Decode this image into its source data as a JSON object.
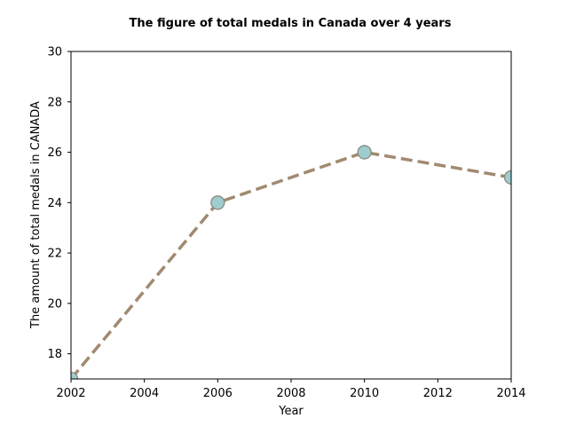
{
  "chart_data": {
    "type": "line",
    "title": "The figure of total medals in Canada over 4 years",
    "xlabel": "Year",
    "ylabel": "The amount of total medals in CANADA",
    "x": [
      2002,
      2006,
      2010,
      2014
    ],
    "series": [
      {
        "values": [
          17,
          24,
          26,
          25
        ]
      }
    ],
    "xlim": [
      2002,
      2014
    ],
    "ylim": [
      17,
      30
    ],
    "xticks": [
      2002,
      2004,
      2006,
      2008,
      2010,
      2012,
      2014
    ],
    "yticks": [
      18,
      20,
      22,
      24,
      26,
      28,
      30
    ],
    "grid": false,
    "line_style": "dashed",
    "line_color": "#a08a70",
    "marker_color": "#9fcdcf",
    "marker_edge_color": "#8a8a80"
  }
}
